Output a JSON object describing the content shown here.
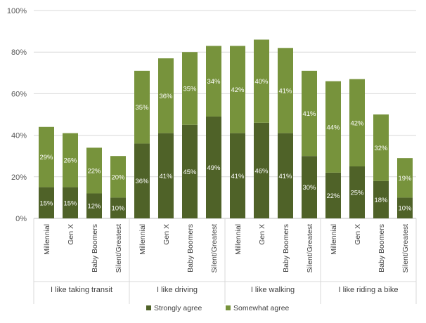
{
  "chart_data": {
    "type": "bar",
    "stacked": true,
    "groups": [
      {
        "label": "I like taking transit",
        "categories": [
          "Millennial",
          "Gen X",
          "Baby Boomers",
          "Silent/Greatest"
        ]
      },
      {
        "label": "I like driving",
        "categories": [
          "Millennial",
          "Gen X",
          "Baby Boomers",
          "Silent/Greatest"
        ]
      },
      {
        "label": "I like walking",
        "categories": [
          "Millennial",
          "Gen X",
          "Baby Boomers",
          "Silent/Greatest"
        ]
      },
      {
        "label": "I like riding a bike",
        "categories": [
          "Millennial",
          "Gen X",
          "Baby Boomers",
          "Silent/Greatest"
        ]
      }
    ],
    "series": [
      {
        "name": "Strongly agree",
        "color": "#4f6228",
        "values": [
          15,
          15,
          12,
          10,
          36,
          41,
          45,
          49,
          41,
          46,
          41,
          30,
          22,
          25,
          18,
          10
        ],
        "labels": [
          "15%",
          "15%",
          "12%",
          "10%",
          "36%",
          "41%",
          "45%",
          "49%",
          "41%",
          "46%",
          "41%",
          "30%",
          "22%",
          "25%",
          "18%",
          "10%"
        ]
      },
      {
        "name": "Somewhat agree",
        "color": "#77933c",
        "values": [
          29,
          26,
          22,
          20,
          35,
          36,
          35,
          34,
          42,
          40,
          41,
          41,
          44,
          42,
          32,
          19
        ],
        "labels": [
          "29%",
          "26%",
          "22%",
          "20%",
          "35%",
          "36%",
          "35%",
          "34%",
          "42%",
          "40%",
          "41%",
          "41%",
          "44%",
          "42%",
          "32%",
          "19%"
        ]
      }
    ],
    "ylim": [
      0,
      100
    ],
    "yticks": [
      "0%",
      "20%",
      "40%",
      "60%",
      "80%",
      "100%"
    ],
    "ytick_values": [
      0,
      20,
      40,
      60,
      80,
      100
    ],
    "grid": true,
    "legend": "bottom",
    "xlabel": "",
    "ylabel": "",
    "title": ""
  }
}
